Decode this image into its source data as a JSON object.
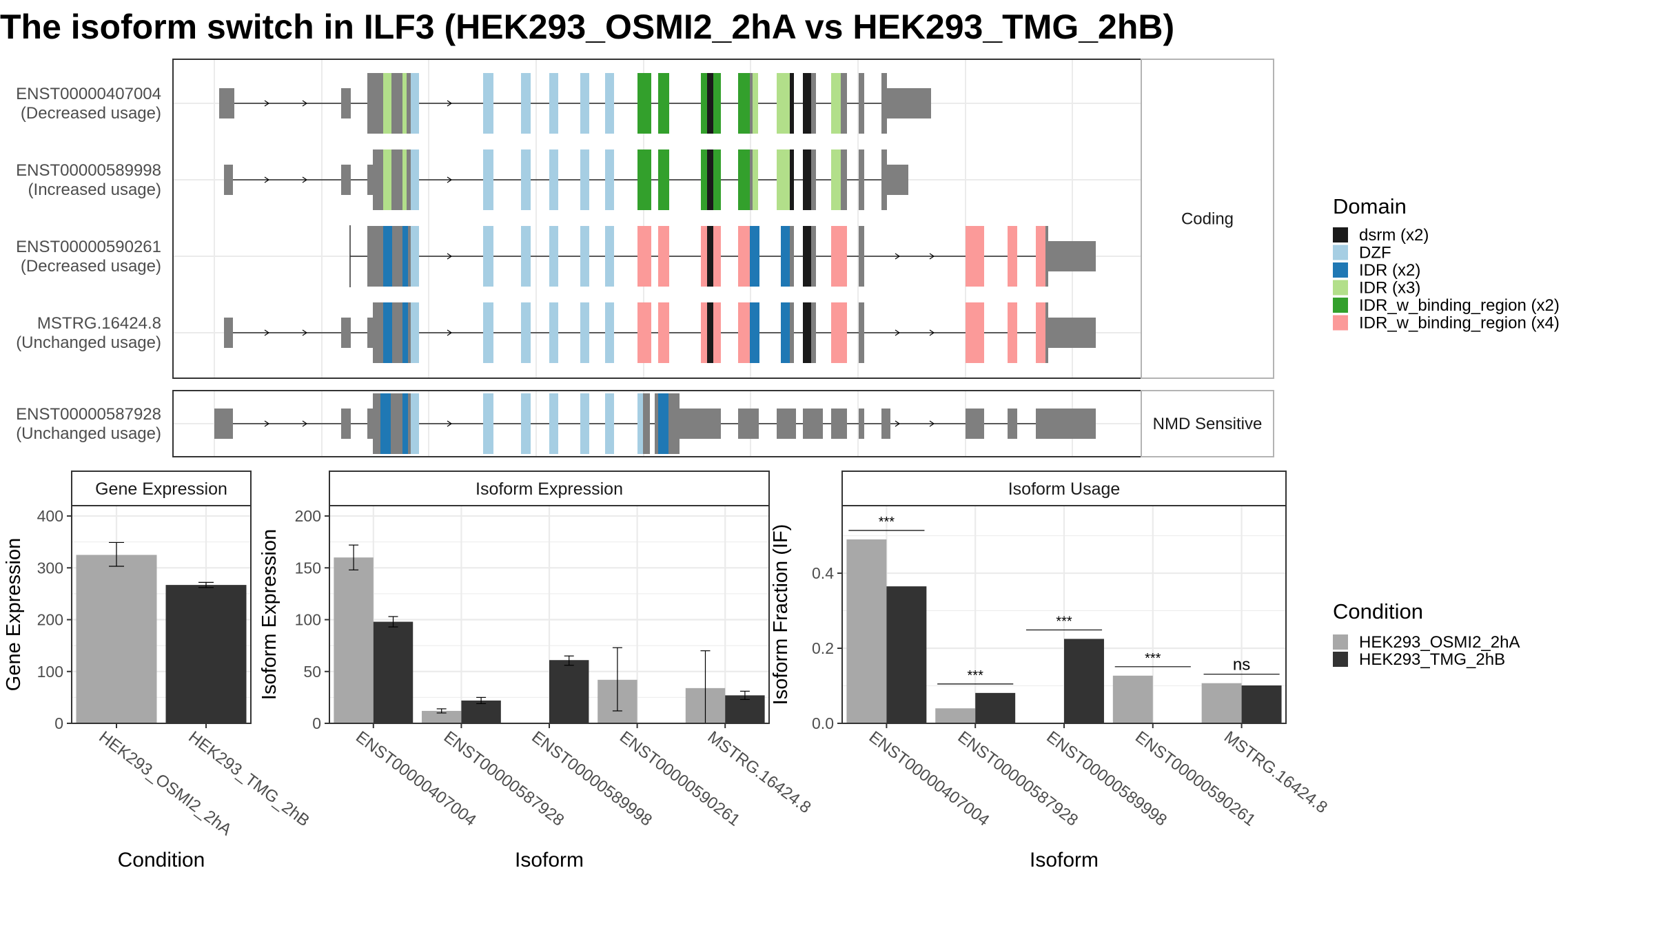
{
  "title": "The isoform switch in ILF3 (HEK293_OSMI2_2hA vs HEK293_TMG_2hB)",
  "colors": {
    "exon": "#7f7f7f",
    "condition_a": "#a8a8a8",
    "condition_b": "#333333",
    "strip_bg": "#ffffff",
    "grid": "#ebebeb"
  },
  "chart_data": [
    {
      "type": "gene-structure",
      "panels": [
        {
          "label": "Coding",
          "isoforms": [
            {
              "id": "ENST00000407004",
              "usage": "(Decreased usage)"
            },
            {
              "id": "ENST00000589998",
              "usage": "(Increased usage)"
            },
            {
              "id": "ENST00000590261",
              "usage": "(Decreased usage)"
            },
            {
              "id": "MSTRG.16424.8",
              "usage": "(Unchanged usage)"
            }
          ]
        },
        {
          "label": "NMD Sensitive",
          "isoforms": [
            {
              "id": "ENST00000587928",
              "usage": "(Unchanged usage)"
            }
          ]
        }
      ],
      "legend": {
        "title": "Domain",
        "items": [
          {
            "name": "dsrm (x2)",
            "color": "#1a1a1a"
          },
          {
            "name": "DZF",
            "color": "#a6cee3"
          },
          {
            "name": "IDR (x2)",
            "color": "#1f78b4"
          },
          {
            "name": "IDR (x3)",
            "color": "#b2df8a"
          },
          {
            "name": "IDR_w_binding_region (x2)",
            "color": "#33a02c"
          },
          {
            "name": "IDR_w_binding_region (x4)",
            "color": "#fb9a99"
          }
        ]
      }
    },
    {
      "type": "bar",
      "title": "Gene Expression",
      "xlabel": "Condition",
      "ylabel": "Gene Expression",
      "categories": [
        "HEK293_OSMI2_2hA",
        "HEK293_TMG_2hB"
      ],
      "values": [
        325,
        267
      ],
      "error_low": [
        303,
        262
      ],
      "error_high": [
        349,
        272
      ],
      "ylim": [
        0,
        420
      ],
      "yticks": [
        0,
        100,
        200,
        300,
        400
      ]
    },
    {
      "type": "bar",
      "title": "Isoform Expression",
      "xlabel": "Isoform",
      "ylabel": "Isoform Expression",
      "categories": [
        "ENST00000407004",
        "ENST00000587928",
        "ENST00000589998",
        "ENST00000590261",
        "MSTRG.16424.8"
      ],
      "series": [
        {
          "name": "HEK293_OSMI2_2hA",
          "values": [
            160,
            12,
            0,
            42,
            34
          ],
          "error_low": [
            148,
            10,
            0,
            12,
            0
          ],
          "error_high": [
            172,
            14,
            0,
            73,
            70
          ]
        },
        {
          "name": "HEK293_TMG_2hB",
          "values": [
            98,
            22,
            61,
            0,
            27
          ],
          "error_low": [
            93,
            19,
            56,
            0,
            23
          ],
          "error_high": [
            103,
            25,
            65,
            0,
            31
          ]
        }
      ],
      "ylim": [
        0,
        210
      ],
      "yticks": [
        0,
        50,
        100,
        150,
        200
      ]
    },
    {
      "type": "bar",
      "title": "Isoform Usage",
      "xlabel": "Isoform",
      "ylabel": "Isoform Fraction (IF)",
      "categories": [
        "ENST00000407004",
        "ENST00000587928",
        "ENST00000589998",
        "ENST00000590261",
        "MSTRG.16424.8"
      ],
      "series": [
        {
          "name": "HEK293_OSMI2_2hA",
          "values": [
            0.49,
            0.04,
            0,
            0.127,
            0.107
          ]
        },
        {
          "name": "HEK293_TMG_2hB",
          "values": [
            0.365,
            0.081,
            0.225,
            0,
            0.101
          ]
        }
      ],
      "significance": [
        "***",
        "***",
        "***",
        "***",
        "ns"
      ],
      "ylim": [
        0,
        0.58
      ],
      "yticks": [
        0.0,
        0.2,
        0.4
      ]
    }
  ],
  "condition_legend": {
    "title": "Condition",
    "items": [
      {
        "name": "HEK293_OSMI2_2hA",
        "color": "#a8a8a8"
      },
      {
        "name": "HEK293_TMG_2hB",
        "color": "#333333"
      }
    ]
  }
}
